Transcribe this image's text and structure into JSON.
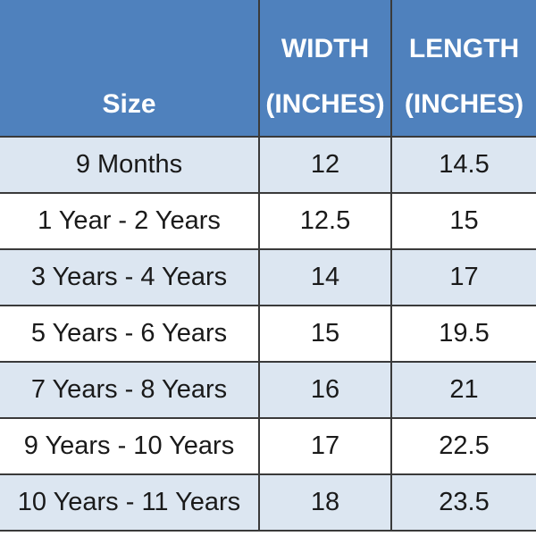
{
  "table": {
    "header": [
      "Size",
      "WIDTH (INCHES)",
      "LENGTH (INCHES)"
    ],
    "rows": [
      [
        "9 Months",
        12,
        14.5
      ],
      [
        "1 Year - 2 Years",
        12.5,
        15
      ],
      [
        "3 Years - 4 Years",
        14,
        17
      ],
      [
        "5 Years - 6 Years",
        15,
        19.5
      ],
      [
        "7 Years - 8 Years",
        16,
        21
      ],
      [
        "9 Years - 10 Years",
        17,
        22.5
      ],
      [
        "10 Years - 11 Years",
        18,
        23.5
      ]
    ]
  }
}
